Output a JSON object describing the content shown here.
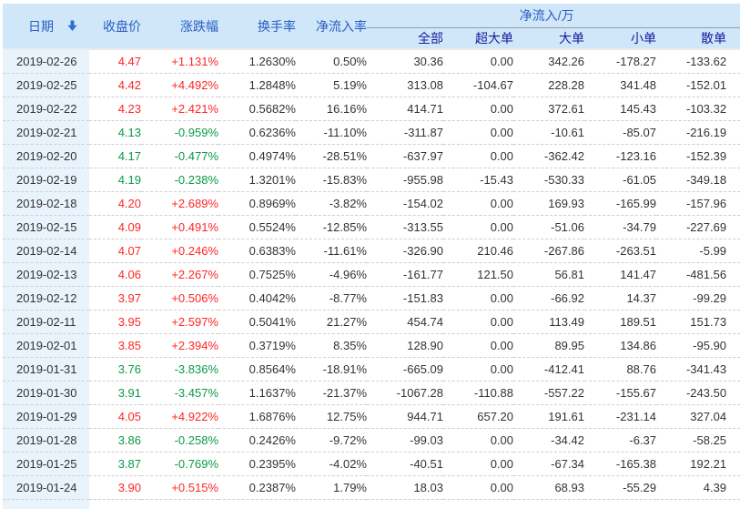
{
  "table": {
    "columns": {
      "date": "日期",
      "close": "收盘价",
      "change": "涨跌幅",
      "turnover": "换手率",
      "inflow_rate": "净流入率",
      "inflow_group": "净流入/万",
      "sub": {
        "all": "全部",
        "super": "超大单",
        "large": "大单",
        "small": "小单",
        "retail": "散单"
      }
    },
    "sort": {
      "column": "日期",
      "direction": "desc"
    },
    "rows": [
      {
        "date": "2019-02-26",
        "close": "4.47",
        "change": "+1.131%",
        "dir": "up",
        "turnover": "1.2630%",
        "inflow_rate": "0.50%",
        "all": "30.36",
        "super": "0.00",
        "large": "342.26",
        "small": "-178.27",
        "retail": "-133.62"
      },
      {
        "date": "2019-02-25",
        "close": "4.42",
        "change": "+4.492%",
        "dir": "up",
        "turnover": "1.2848%",
        "inflow_rate": "5.19%",
        "all": "313.08",
        "super": "-104.67",
        "large": "228.28",
        "small": "341.48",
        "retail": "-152.01"
      },
      {
        "date": "2019-02-22",
        "close": "4.23",
        "change": "+2.421%",
        "dir": "up",
        "turnover": "0.5682%",
        "inflow_rate": "16.16%",
        "all": "414.71",
        "super": "0.00",
        "large": "372.61",
        "small": "145.43",
        "retail": "-103.32"
      },
      {
        "date": "2019-02-21",
        "close": "4.13",
        "change": "-0.959%",
        "dir": "down",
        "turnover": "0.6236%",
        "inflow_rate": "-11.10%",
        "all": "-311.87",
        "super": "0.00",
        "large": "-10.61",
        "small": "-85.07",
        "retail": "-216.19"
      },
      {
        "date": "2019-02-20",
        "close": "4.17",
        "change": "-0.477%",
        "dir": "down",
        "turnover": "0.4974%",
        "inflow_rate": "-28.51%",
        "all": "-637.97",
        "super": "0.00",
        "large": "-362.42",
        "small": "-123.16",
        "retail": "-152.39"
      },
      {
        "date": "2019-02-19",
        "close": "4.19",
        "change": "-0.238%",
        "dir": "down",
        "turnover": "1.3201%",
        "inflow_rate": "-15.83%",
        "all": "-955.98",
        "super": "-15.43",
        "large": "-530.33",
        "small": "-61.05",
        "retail": "-349.18"
      },
      {
        "date": "2019-02-18",
        "close": "4.20",
        "change": "+2.689%",
        "dir": "up",
        "turnover": "0.8969%",
        "inflow_rate": "-3.82%",
        "all": "-154.02",
        "super": "0.00",
        "large": "169.93",
        "small": "-165.99",
        "retail": "-157.96"
      },
      {
        "date": "2019-02-15",
        "close": "4.09",
        "change": "+0.491%",
        "dir": "up",
        "turnover": "0.5524%",
        "inflow_rate": "-12.85%",
        "all": "-313.55",
        "super": "0.00",
        "large": "-51.06",
        "small": "-34.79",
        "retail": "-227.69"
      },
      {
        "date": "2019-02-14",
        "close": "4.07",
        "change": "+0.246%",
        "dir": "up",
        "turnover": "0.6383%",
        "inflow_rate": "-11.61%",
        "all": "-326.90",
        "super": "210.46",
        "large": "-267.86",
        "small": "-263.51",
        "retail": "-5.99"
      },
      {
        "date": "2019-02-13",
        "close": "4.06",
        "change": "+2.267%",
        "dir": "up",
        "turnover": "0.7525%",
        "inflow_rate": "-4.96%",
        "all": "-161.77",
        "super": "121.50",
        "large": "56.81",
        "small": "141.47",
        "retail": "-481.56"
      },
      {
        "date": "2019-02-12",
        "close": "3.97",
        "change": "+0.506%",
        "dir": "up",
        "turnover": "0.4042%",
        "inflow_rate": "-8.77%",
        "all": "-151.83",
        "super": "0.00",
        "large": "-66.92",
        "small": "14.37",
        "retail": "-99.29"
      },
      {
        "date": "2019-02-11",
        "close": "3.95",
        "change": "+2.597%",
        "dir": "up",
        "turnover": "0.5041%",
        "inflow_rate": "21.27%",
        "all": "454.74",
        "super": "0.00",
        "large": "113.49",
        "small": "189.51",
        "retail": "151.73"
      },
      {
        "date": "2019-02-01",
        "close": "3.85",
        "change": "+2.394%",
        "dir": "up",
        "turnover": "0.3719%",
        "inflow_rate": "8.35%",
        "all": "128.90",
        "super": "0.00",
        "large": "89.95",
        "small": "134.86",
        "retail": "-95.90"
      },
      {
        "date": "2019-01-31",
        "close": "3.76",
        "change": "-3.836%",
        "dir": "down",
        "turnover": "0.8564%",
        "inflow_rate": "-18.91%",
        "all": "-665.09",
        "super": "0.00",
        "large": "-412.41",
        "small": "88.76",
        "retail": "-341.43"
      },
      {
        "date": "2019-01-30",
        "close": "3.91",
        "change": "-3.457%",
        "dir": "down",
        "turnover": "1.1637%",
        "inflow_rate": "-21.37%",
        "all": "-1067.28",
        "super": "-110.88",
        "large": "-557.22",
        "small": "-155.67",
        "retail": "-243.50"
      },
      {
        "date": "2019-01-29",
        "close": "4.05",
        "change": "+4.922%",
        "dir": "up",
        "turnover": "1.6876%",
        "inflow_rate": "12.75%",
        "all": "944.71",
        "super": "657.20",
        "large": "191.61",
        "small": "-231.14",
        "retail": "327.04"
      },
      {
        "date": "2019-01-28",
        "close": "3.86",
        "change": "-0.258%",
        "dir": "down",
        "turnover": "0.2426%",
        "inflow_rate": "-9.72%",
        "all": "-99.03",
        "super": "0.00",
        "large": "-34.42",
        "small": "-6.37",
        "retail": "-58.25"
      },
      {
        "date": "2019-01-25",
        "close": "3.87",
        "change": "-0.769%",
        "dir": "down",
        "turnover": "0.2395%",
        "inflow_rate": "-4.02%",
        "all": "-40.51",
        "super": "0.00",
        "large": "-67.34",
        "small": "-165.38",
        "retail": "192.21"
      },
      {
        "date": "2019-01-24",
        "close": "3.90",
        "change": "+0.515%",
        "dir": "up",
        "turnover": "0.2387%",
        "inflow_rate": "1.79%",
        "all": "18.03",
        "super": "0.00",
        "large": "68.93",
        "small": "-55.29",
        "retail": "4.39"
      }
    ]
  },
  "colors": {
    "up": "#ff2626",
    "down": "#0b9a47",
    "header_bg": "#cfe7f8",
    "header_text": "#2b5dc4",
    "subheader_text": "#1a1a9e",
    "date_col_bg": "#e9f3fb",
    "text": "#333333"
  }
}
